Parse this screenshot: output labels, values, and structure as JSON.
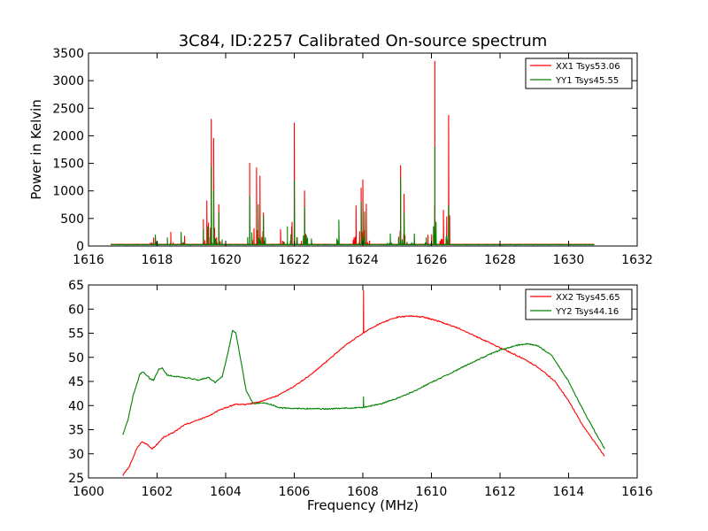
{
  "page": {
    "title": "3C84, ID:2257 Calibrated On-source spectrum"
  },
  "colors": {
    "red": "#ff0000",
    "green": "#008000"
  },
  "chart_data": [
    {
      "type": "line",
      "title": "3C84, ID:2257 Calibrated On-source spectrum",
      "xlabel": "",
      "ylabel": "Power in Kelvin",
      "xlim": [
        1616,
        1632
      ],
      "ylim": [
        0,
        3500
      ],
      "xticks": [
        1616,
        1618,
        1620,
        1622,
        1624,
        1626,
        1628,
        1630,
        1632
      ],
      "yticks": [
        0,
        500,
        1000,
        1500,
        2000,
        2500,
        3000,
        3500
      ],
      "legend_position": "top-right",
      "grid": false,
      "series": [
        {
          "name": "XX1 Tsys53.06",
          "color": "#ff0000",
          "baseline": 30,
          "xrange": [
            1616.65,
            1630.75
          ],
          "peaks": [
            [
              1617.9,
              150
            ],
            [
              1618.4,
              250
            ],
            [
              1618.8,
              180
            ],
            [
              1619.35,
              480
            ],
            [
              1619.45,
              820
            ],
            [
              1619.58,
              2300
            ],
            [
              1619.65,
              1950
            ],
            [
              1619.8,
              750
            ],
            [
              1620.7,
              1500
            ],
            [
              1620.9,
              1420
            ],
            [
              1621.0,
              1270
            ],
            [
              1621.1,
              600
            ],
            [
              1621.6,
              300
            ],
            [
              1622.0,
              2230
            ],
            [
              1622.3,
              1000
            ],
            [
              1623.8,
              730
            ],
            [
              1623.95,
              1050
            ],
            [
              1624.0,
              1200
            ],
            [
              1624.1,
              760
            ],
            [
              1625.1,
              1460
            ],
            [
              1625.2,
              940
            ],
            [
              1625.9,
              200
            ],
            [
              1626.1,
              3350
            ],
            [
              1626.35,
              650
            ],
            [
              1626.5,
              2370
            ]
          ]
        },
        {
          "name": "YY1 Tsys45.55",
          "color": "#008000",
          "baseline": 25,
          "xrange": [
            1616.65,
            1630.75
          ],
          "peaks": [
            [
              1617.95,
              200
            ],
            [
              1618.3,
              150
            ],
            [
              1618.7,
              250
            ],
            [
              1619.35,
              300
            ],
            [
              1619.58,
              1450
            ],
            [
              1619.65,
              1000
            ],
            [
              1619.8,
              600
            ],
            [
              1620.7,
              900
            ],
            [
              1620.95,
              750
            ],
            [
              1621.1,
              550
            ],
            [
              1621.8,
              350
            ],
            [
              1622.0,
              1180
            ],
            [
              1622.3,
              700
            ],
            [
              1622.5,
              130
            ],
            [
              1623.3,
              470
            ],
            [
              1623.95,
              800
            ],
            [
              1624.05,
              620
            ],
            [
              1624.8,
              220
            ],
            [
              1625.1,
              1230
            ],
            [
              1625.2,
              600
            ],
            [
              1625.5,
              220
            ],
            [
              1625.85,
              150
            ],
            [
              1626.1,
              1800
            ],
            [
              1626.5,
              730
            ]
          ]
        }
      ]
    },
    {
      "type": "line",
      "title": "",
      "xlabel": "Frequency (MHz)",
      "ylabel": "",
      "xlim": [
        1600,
        1616
      ],
      "ylim": [
        25,
        65
      ],
      "xticks": [
        1600,
        1602,
        1604,
        1606,
        1608,
        1610,
        1612,
        1614,
        1616
      ],
      "yticks": [
        25,
        30,
        35,
        40,
        45,
        50,
        55,
        60,
        65
      ],
      "legend_position": "top-right",
      "grid": false,
      "series": [
        {
          "name": "XX2 Tsys45.65",
          "color": "#ff0000",
          "points": [
            [
              1601.0,
              25.5
            ],
            [
              1601.2,
              27.5
            ],
            [
              1601.4,
              31.0
            ],
            [
              1601.55,
              32.5
            ],
            [
              1601.7,
              32.0
            ],
            [
              1601.85,
              31.0
            ],
            [
              1602.0,
              32.0
            ],
            [
              1602.2,
              33.5
            ],
            [
              1602.5,
              34.5
            ],
            [
              1602.8,
              36.0
            ],
            [
              1603.2,
              37.0
            ],
            [
              1603.5,
              37.8
            ],
            [
              1603.8,
              39.0
            ],
            [
              1604.0,
              39.5
            ],
            [
              1604.3,
              40.3
            ],
            [
              1604.6,
              40.2
            ],
            [
              1605.0,
              40.8
            ],
            [
              1605.5,
              42.0
            ],
            [
              1606.0,
              44.0
            ],
            [
              1606.5,
              46.5
            ],
            [
              1607.0,
              49.5
            ],
            [
              1607.5,
              52.5
            ],
            [
              1608.0,
              55.0
            ],
            [
              1608.5,
              57.0
            ],
            [
              1609.0,
              58.3
            ],
            [
              1609.4,
              58.6
            ],
            [
              1609.8,
              58.3
            ],
            [
              1610.2,
              57.5
            ],
            [
              1610.8,
              56.0
            ],
            [
              1611.4,
              54.0
            ],
            [
              1612.0,
              52.0
            ],
            [
              1612.6,
              50.0
            ],
            [
              1613.1,
              48.0
            ],
            [
              1613.6,
              45.0
            ],
            [
              1614.0,
              41.0
            ],
            [
              1614.4,
              36.0
            ],
            [
              1614.8,
              32.0
            ],
            [
              1615.05,
              29.5
            ]
          ],
          "spikes": [
            [
              1608.02,
              63.8
            ]
          ]
        },
        {
          "name": "YY2 Tsys44.16",
          "color": "#008000",
          "points": [
            [
              1601.0,
              34.0
            ],
            [
              1601.15,
              37.0
            ],
            [
              1601.3,
              42.0
            ],
            [
              1601.5,
              46.5
            ],
            [
              1601.6,
              47.0
            ],
            [
              1601.8,
              45.5
            ],
            [
              1601.9,
              45.3
            ],
            [
              1602.05,
              47.5
            ],
            [
              1602.15,
              47.8
            ],
            [
              1602.3,
              46.3
            ],
            [
              1602.6,
              46.0
            ],
            [
              1602.9,
              45.7
            ],
            [
              1603.2,
              45.3
            ],
            [
              1603.5,
              45.8
            ],
            [
              1603.7,
              44.8
            ],
            [
              1603.9,
              46.0
            ],
            [
              1604.1,
              52.0
            ],
            [
              1604.2,
              55.5
            ],
            [
              1604.3,
              55.0
            ],
            [
              1604.45,
              49.0
            ],
            [
              1604.6,
              43.0
            ],
            [
              1604.8,
              40.5
            ],
            [
              1605.2,
              40.5
            ],
            [
              1605.6,
              39.5
            ],
            [
              1606.0,
              39.4
            ],
            [
              1607.0,
              39.3
            ],
            [
              1608.0,
              39.6
            ],
            [
              1608.5,
              40.3
            ],
            [
              1609.0,
              41.5
            ],
            [
              1609.5,
              43.0
            ],
            [
              1610.0,
              44.8
            ],
            [
              1610.5,
              46.5
            ],
            [
              1611.0,
              48.3
            ],
            [
              1611.5,
              50.0
            ],
            [
              1612.0,
              51.5
            ],
            [
              1612.5,
              52.5
            ],
            [
              1612.8,
              52.8
            ],
            [
              1613.1,
              52.4
            ],
            [
              1613.5,
              50.5
            ],
            [
              1614.0,
              45.0
            ],
            [
              1614.5,
              38.0
            ],
            [
              1615.05,
              31.0
            ]
          ],
          "spikes": [
            [
              1608.02,
              41.8
            ]
          ]
        }
      ]
    }
  ]
}
